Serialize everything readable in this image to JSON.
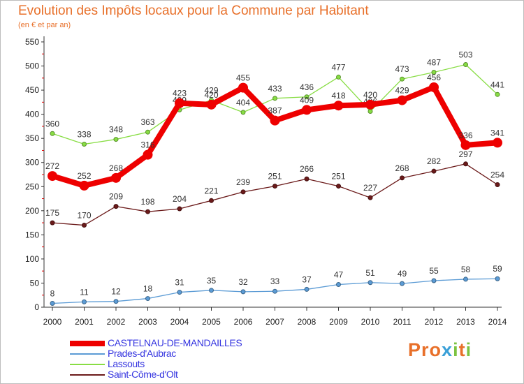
{
  "chart_data": {
    "type": "line",
    "title": "Evolution des Impôts locaux pour la Commune par Habitant",
    "subtitle": "(en € et par an)",
    "xlabel": "",
    "ylabel": "",
    "x": [
      "2000",
      "2001",
      "2002",
      "2003",
      "2004",
      "2005",
      "2006",
      "2007",
      "2008",
      "2009",
      "2010",
      "2011",
      "2012",
      "2013",
      "2014"
    ],
    "yticks": [
      0,
      50,
      100,
      150,
      200,
      250,
      300,
      350,
      400,
      450,
      500,
      550
    ],
    "ylim": [
      0,
      550
    ],
    "grid": false,
    "legend_position": "bottom-left",
    "series": [
      {
        "name": "CASTELNAU-DE-MANDAILLES",
        "color": "#ee0000",
        "width": "thick",
        "values": [
          272,
          252,
          268,
          316,
          423,
          420,
          455,
          387,
          409,
          418,
          420,
          429,
          456,
          336,
          341
        ],
        "labels": [
          "272",
          "252",
          "268",
          "316",
          "423",
          "420",
          "455",
          "387",
          "409",
          "418",
          "420",
          "429",
          "456",
          "336",
          "341"
        ]
      },
      {
        "name": "Prades-d'Aubrac",
        "color": "#5b9bd5",
        "width": "thin",
        "values": [
          8,
          11,
          12,
          18,
          31,
          35,
          32,
          33,
          37,
          47,
          51,
          49,
          55,
          58,
          59
        ],
        "labels": [
          "8",
          "11",
          "12",
          "18",
          "31",
          "35",
          "32",
          "33",
          "37",
          "47",
          "51",
          "49",
          "55",
          "58",
          "59"
        ]
      },
      {
        "name": "Lassouts",
        "color": "#88dd44",
        "width": "thin",
        "values": [
          360,
          338,
          348,
          363,
          409,
          429,
          404,
          433,
          436,
          477,
          406,
          473,
          487,
          503,
          441
        ],
        "labels": [
          "360",
          "338",
          "348",
          "363",
          "409",
          "429",
          "404",
          "433",
          "436",
          "477",
          "406",
          "473",
          "487",
          "503",
          "441"
        ]
      },
      {
        "name": "Saint-Côme-d'Olt",
        "color": "#6b1a1a",
        "width": "thin",
        "values": [
          175,
          170,
          209,
          198,
          204,
          221,
          239,
          251,
          266,
          251,
          227,
          268,
          282,
          297,
          254
        ],
        "labels": [
          "175",
          "170",
          "209",
          "198",
          "204",
          "221",
          "239",
          "251",
          "266",
          "251",
          "227",
          "268",
          "282",
          "297",
          "254"
        ]
      }
    ]
  },
  "logo": {
    "text": "Proxiti",
    "letters": [
      "P",
      "r",
      "o",
      "x",
      "i",
      "t",
      "i"
    ]
  }
}
